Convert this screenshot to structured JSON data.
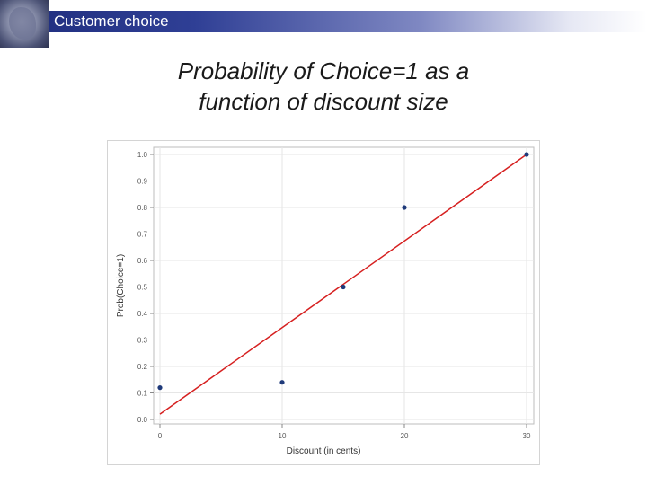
{
  "header": {
    "title": "Customer choice",
    "logo_icon": "seal-logo-icon",
    "bar_color": "#1e2c7c"
  },
  "slide": {
    "title_line1": "Probability of Choice=1 as a",
    "title_line2": "function of discount size"
  },
  "chart_data": {
    "type": "scatter",
    "xlabel": "Discount (in cents)",
    "ylabel": "Prob(Choice=1)",
    "xlim": [
      0,
      30
    ],
    "ylim": [
      0.0,
      1.0
    ],
    "x_ticks": [
      "0",
      "10",
      "20",
      "30"
    ],
    "y_ticks": [
      "0.0",
      "0.1",
      "0.2",
      "0.3",
      "0.4",
      "0.5",
      "0.6",
      "0.7",
      "0.8",
      "0.9",
      "1.0"
    ],
    "grid": true,
    "series": [
      {
        "kind": "points",
        "color": "#1f3a7a",
        "x": [
          0,
          10,
          15,
          20,
          30
        ],
        "y": [
          0.12,
          0.14,
          0.5,
          0.8,
          1.0
        ]
      },
      {
        "kind": "fit-line",
        "color": "#d62020",
        "x": [
          0,
          30
        ],
        "y": [
          0.02,
          1.0
        ]
      }
    ]
  }
}
